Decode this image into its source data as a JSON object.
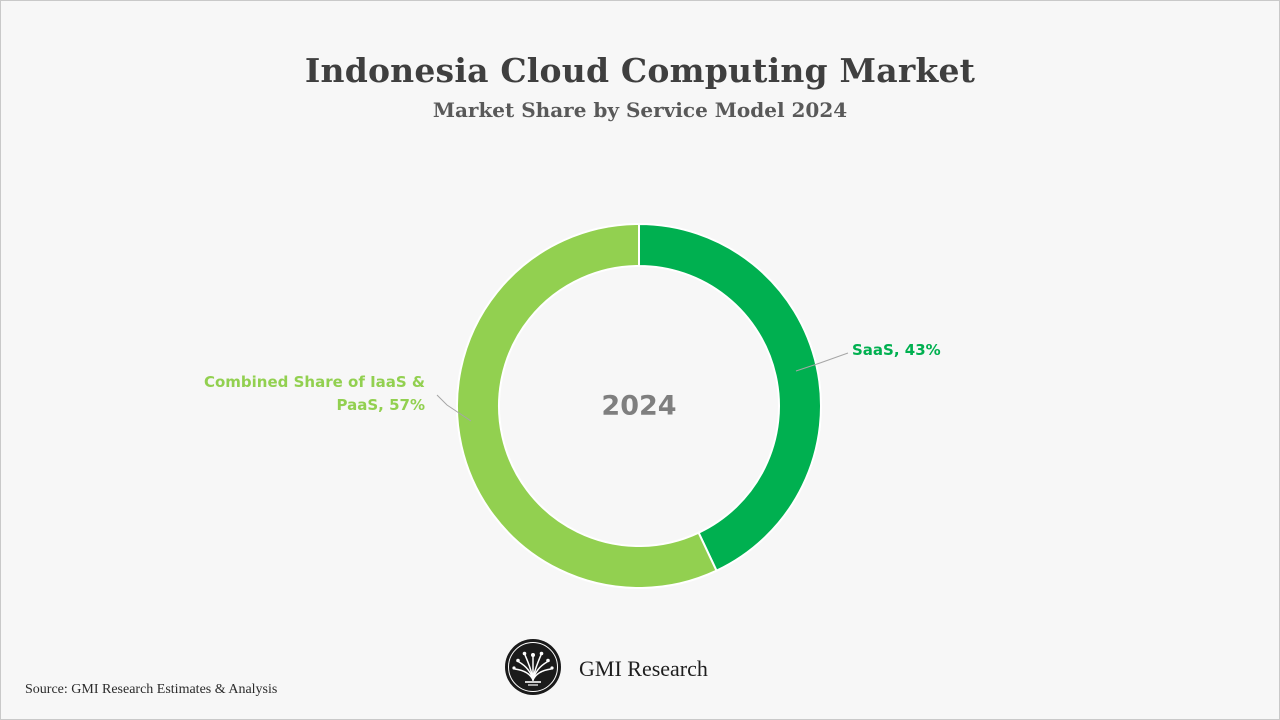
{
  "page": {
    "title": "Indonesia Cloud Computing Market",
    "subtitle": "Market Share by Service Model 2024"
  },
  "chart_data": {
    "type": "pie",
    "style": "donut",
    "title": "Indonesia Cloud Computing Market",
    "subtitle": "Market Share by Service Model 2024",
    "center_label": "2024",
    "slices": [
      {
        "name": "SaaS",
        "value": 43,
        "label_lines": [
          "SaaS, 43%"
        ],
        "color": "#00b050"
      },
      {
        "name": "Combined Share of IaaS & PaaS",
        "value": 57,
        "label_lines": [
          "Combined Share of IaaS &",
          "PaaS, 57%"
        ],
        "color": "#92d050"
      }
    ],
    "start_angle": "12 o'clock",
    "direction": "clockwise",
    "legend": "none",
    "colors": {
      "center_label": "#7f7f7f",
      "leader_line": "#a6a6a6",
      "separator": "#ffffff"
    }
  },
  "footer": {
    "source": "Source: GMI Research Estimates & Analysis",
    "brand_name": "GMI Research",
    "logo_icon": "gmi-research-logo-icon"
  }
}
